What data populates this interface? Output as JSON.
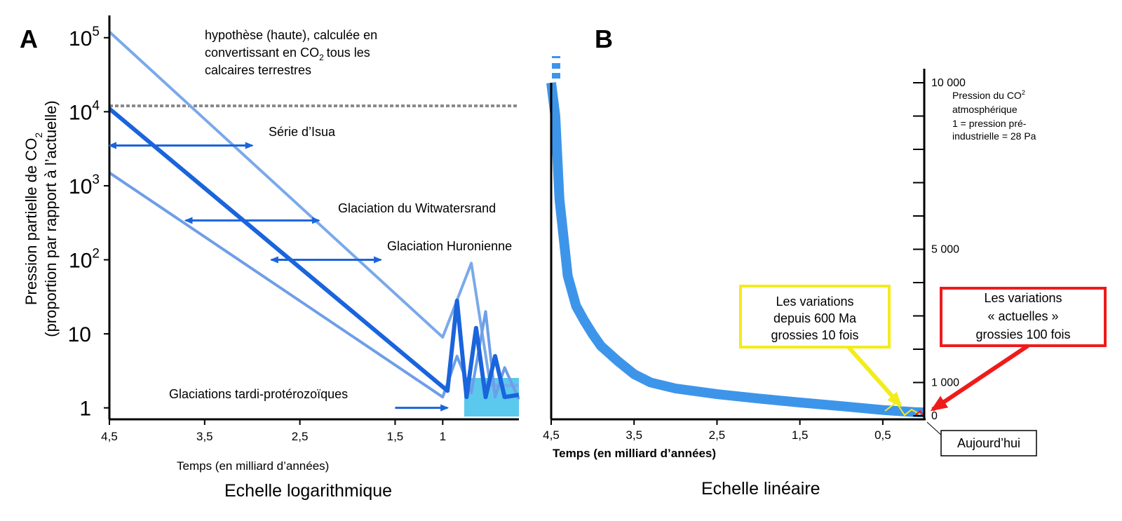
{
  "colors": {
    "dark_blue": "#1a64dc",
    "mid_blue": "#6e9ee8",
    "light_blue": "#7aa9ea",
    "curve_blue": "#3d95ea",
    "box_fill": "#5bc8ee",
    "yellow": "#f2ec1c",
    "red": "#ef1b1b"
  },
  "chart_data": [
    {
      "panel": "A",
      "type": "line",
      "title": "A",
      "caption": "Echelle logarithmique",
      "xlabel": "Temps (en milliard d’années)",
      "ylabel_line1": "Pression partielle de CO",
      "ylabel_sub": "2",
      "ylabel_line2": "(proportion par rapport à l’actuelle)",
      "yscale": "log",
      "x_reversed": true,
      "xlim": [
        4.5,
        0.2
      ],
      "ylim": [
        0.7,
        200000
      ],
      "x_ticks": [
        {
          "value": 4.5,
          "label": "4,5"
        },
        {
          "value": 3.5,
          "label": "3,5"
        },
        {
          "value": 2.5,
          "label": "2,5"
        },
        {
          "value": 1.5,
          "label": "1,5"
        },
        {
          "value": 1.0,
          "label": "1"
        }
      ],
      "y_ticks": [
        {
          "value": 1,
          "base": "1",
          "exp": ""
        },
        {
          "value": 10,
          "base": "10",
          "exp": ""
        },
        {
          "value": 100,
          "base": "10",
          "exp": "2"
        },
        {
          "value": 1000,
          "base": "10",
          "exp": "3"
        },
        {
          "value": 10000,
          "base": "10",
          "exp": "4"
        },
        {
          "value": 100000,
          "base": "10",
          "exp": "5"
        }
      ],
      "series": [
        {
          "name": "upper bound",
          "color": "light_blue",
          "width": 4,
          "x": [
            4.5,
            1.0,
            0.7,
            0.5,
            0.2
          ],
          "y": [
            120000,
            9,
            90,
            2,
            2
          ]
        },
        {
          "name": "central estimate",
          "color": "dark_blue",
          "width": 6,
          "x": [
            4.5,
            0.95,
            0.85,
            0.75,
            0.65,
            0.55,
            0.45,
            0.35,
            0.2
          ],
          "y": [
            11000,
            1.7,
            28,
            1.4,
            12,
            1.4,
            5,
            1.4,
            1.5
          ]
        },
        {
          "name": "lower bound",
          "color": "mid_blue",
          "width": 4,
          "x": [
            4.5,
            1.0,
            0.85,
            0.7,
            0.55,
            0.45,
            0.35,
            0.2
          ],
          "y": [
            1500,
            1.4,
            5,
            1.6,
            20,
            1.4,
            3.5,
            1.3
          ]
        }
      ],
      "dashed_line": {
        "y": 12000,
        "x_from": 4.5,
        "x_to": 0.2
      },
      "hypothesis_lines": [
        "hypothèse (haute), calculée en",
        "convertissant en CO",
        "tous les",
        "calcaires terrestres"
      ],
      "hypothesis_sub": "2",
      "annotations": [
        {
          "label": "Série d’Isua",
          "arrow_from": 4.5,
          "arrow_to": 3.0,
          "y": 3500
        },
        {
          "label": "Glaciation du Witwatersrand",
          "arrow_from": 3.7,
          "arrow_to": 2.3,
          "y": 340
        },
        {
          "label": "Glaciation Huronienne",
          "arrow_from": 2.8,
          "arrow_to": 1.65,
          "y": 100
        },
        {
          "label": "Glaciations tardi-protérozoïques",
          "arrow_from": 1.5,
          "arrow_to": 0.95,
          "y": 1
        }
      ]
    },
    {
      "panel": "B",
      "type": "line",
      "title": "B",
      "caption": "Echelle linéaire",
      "xlabel": "Temps (en milliard d’années)",
      "x_reversed": true,
      "xlim": [
        4.5,
        0.0
      ],
      "ylim": [
        0,
        10000
      ],
      "x_ticks": [
        {
          "value": 4.5,
          "label": "4,5"
        },
        {
          "value": 3.5,
          "label": "3,5"
        },
        {
          "value": 2.5,
          "label": "2,5"
        },
        {
          "value": 1.5,
          "label": "1,5"
        },
        {
          "value": 0.5,
          "label": "0,5"
        }
      ],
      "y_ticks": [
        {
          "value": 0,
          "label": "0"
        },
        {
          "value": 1000,
          "label": "1 000"
        },
        {
          "value": 2000,
          "label": ""
        },
        {
          "value": 3000,
          "label": ""
        },
        {
          "value": 4000,
          "label": ""
        },
        {
          "value": 5000,
          "label": "5 000"
        },
        {
          "value": 6000,
          "label": ""
        },
        {
          "value": 7000,
          "label": ""
        },
        {
          "value": 8000,
          "label": ""
        },
        {
          "value": 9000,
          "label": ""
        },
        {
          "value": 10000,
          "label": "10 000"
        }
      ],
      "y_note_lines": [
        "Pression du CO",
        "atmosphérique",
        "1 = pression pré-",
        "industrielle = 28 Pa"
      ],
      "y_note_sub": "2",
      "series": [
        {
          "name": "CO2 pressure",
          "color": "curve_blue",
          "x": [
            4.5,
            4.45,
            4.4,
            4.3,
            4.2,
            4.1,
            4.0,
            3.9,
            3.7,
            3.5,
            3.3,
            3.0,
            2.5,
            2.0,
            1.5,
            1.0,
            0.5,
            0.1,
            0.0
          ],
          "y": [
            10000,
            9000,
            6500,
            4200,
            3300,
            2850,
            2450,
            2100,
            1650,
            1250,
            1000,
            820,
            650,
            520,
            400,
            290,
            175,
            110,
            100
          ]
        }
      ],
      "callouts": [
        {
          "lines": [
            "Les variations",
            "depuis 600 Ma",
            "grossies 10 fois"
          ],
          "color": "yellow"
        },
        {
          "lines": [
            "Les variations",
            "« actuelles »",
            "grossies 100 fois"
          ],
          "color": "red"
        }
      ],
      "today_label": "Aujourd’hui"
    }
  ]
}
